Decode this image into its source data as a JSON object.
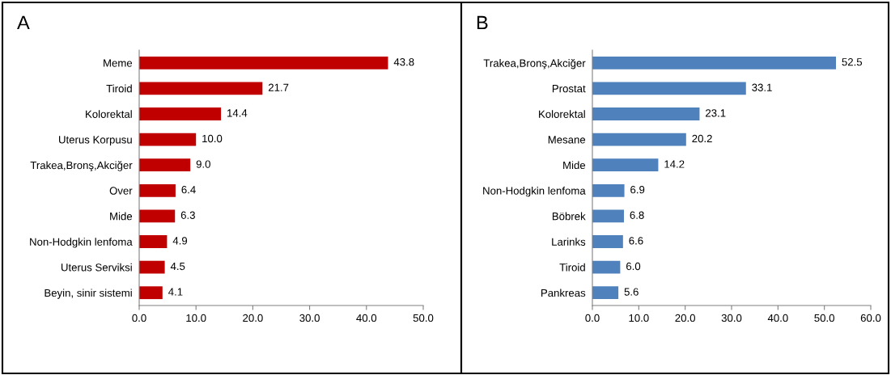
{
  "chart_data": [
    {
      "type": "bar",
      "title": "A",
      "orientation": "horizontal",
      "categories": [
        "Meme",
        "Tiroid",
        "Kolorektal",
        "Uterus Korpusu",
        "Trakea,Bronş,Akciğer",
        "Over",
        "Mide",
        "Non-Hodgkin lenfoma",
        "Uterus Serviksi",
        "Beyin, sinir sistemi"
      ],
      "values": [
        43.8,
        21.7,
        14.4,
        10.0,
        9.0,
        6.4,
        6.3,
        4.9,
        4.5,
        4.1
      ],
      "value_labels": [
        "43.8",
        "21.7",
        "14.4",
        "10.0",
        "9.0",
        "6.4",
        "6.3",
        "4.9",
        "4.5",
        "4.1"
      ],
      "color": "#c00000",
      "xlim": [
        0,
        50
      ],
      "xticks": [
        {
          "value": 0,
          "label": "0.0"
        },
        {
          "value": 10,
          "label": "10.0"
        },
        {
          "value": 20,
          "label": "20.0"
        },
        {
          "value": 30,
          "label": "30.0"
        },
        {
          "value": 40,
          "label": "40.0"
        },
        {
          "value": 50,
          "label": "50.0"
        }
      ],
      "grid": false,
      "legend": false
    },
    {
      "type": "bar",
      "title": "B",
      "orientation": "horizontal",
      "categories": [
        "Trakea,Bronş,Akciğer",
        "Prostat",
        "Kolorektal",
        "Mesane",
        "Mide",
        "Non-Hodgkin lenfoma",
        "Böbrek",
        "Larinks",
        "Tiroid",
        "Pankreas"
      ],
      "values": [
        52.5,
        33.1,
        23.1,
        20.2,
        14.2,
        6.9,
        6.8,
        6.6,
        6.0,
        5.6
      ],
      "value_labels": [
        "52.5",
        "33.1",
        "23.1",
        "20.2",
        "14.2",
        "6.9",
        "6.8",
        "6.6",
        "6.0",
        "5.6"
      ],
      "color": "#4f81bd",
      "xlim": [
        0,
        60
      ],
      "xticks": [
        {
          "value": 0,
          "label": "0.0"
        },
        {
          "value": 10,
          "label": "10.0"
        },
        {
          "value": 20,
          "label": "20.0"
        },
        {
          "value": 30,
          "label": "30.0"
        },
        {
          "value": 40,
          "label": "40.0"
        },
        {
          "value": 50,
          "label": "50.0"
        },
        {
          "value": 60,
          "label": "60.0"
        }
      ],
      "grid": false,
      "legend": false
    }
  ]
}
